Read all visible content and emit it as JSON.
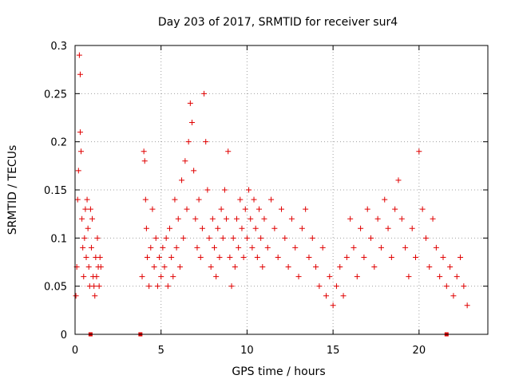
{
  "chart_data": {
    "type": "scatter",
    "title": "Day 203 of 2017, SRMTID for receiver sur4",
    "xlabel": "GPS time / hours",
    "ylabel": "SRMTID / TECUs",
    "xlim": [
      0,
      24
    ],
    "ylim": [
      0,
      0.3
    ],
    "xticks": [
      0,
      5,
      10,
      15,
      20
    ],
    "yticks": [
      0,
      0.05,
      0.1,
      0.15,
      0.2,
      0.25,
      0.3
    ],
    "xtick_labels": [
      "0",
      "5",
      "10",
      "15",
      "20"
    ],
    "ytick_labels": [
      "0",
      "0.05",
      "0.1",
      "0.15",
      "0.2",
      "0.25",
      "0.3"
    ],
    "grid": true,
    "marker": "+",
    "color": "#e00000",
    "series": [
      {
        "name": "SRMTID",
        "points": [
          [
            0.05,
            0.04
          ],
          [
            0.1,
            0.07
          ],
          [
            0.15,
            0.14
          ],
          [
            0.2,
            0.17
          ],
          [
            0.25,
            0.29
          ],
          [
            0.3,
            0.27
          ],
          [
            0.3,
            0.21
          ],
          [
            0.35,
            0.19
          ],
          [
            0.4,
            0.12
          ],
          [
            0.45,
            0.09
          ],
          [
            0.5,
            0.06
          ],
          [
            0.55,
            0.1
          ],
          [
            0.6,
            0.13
          ],
          [
            0.65,
            0.08
          ],
          [
            0.7,
            0.14
          ],
          [
            0.75,
            0.11
          ],
          [
            0.8,
            0.07
          ],
          [
            0.85,
            0.05
          ],
          [
            0.9,
            0.13
          ],
          [
            0.95,
            0.09
          ],
          [
            1.0,
            0.12
          ],
          [
            1.05,
            0.06
          ],
          [
            1.1,
            0.05
          ],
          [
            1.15,
            0.04
          ],
          [
            1.2,
            0.08
          ],
          [
            1.25,
            0.06
          ],
          [
            1.3,
            0.1
          ],
          [
            1.35,
            0.07
          ],
          [
            1.4,
            0.05
          ],
          [
            1.45,
            0.08
          ],
          [
            1.5,
            0.07
          ],
          [
            3.9,
            0.06
          ],
          [
            4.0,
            0.19
          ],
          [
            4.05,
            0.18
          ],
          [
            4.1,
            0.14
          ],
          [
            4.15,
            0.11
          ],
          [
            4.2,
            0.08
          ],
          [
            4.3,
            0.05
          ],
          [
            4.4,
            0.09
          ],
          [
            4.5,
            0.13
          ],
          [
            4.6,
            0.07
          ],
          [
            4.7,
            0.1
          ],
          [
            4.8,
            0.05
          ],
          [
            4.9,
            0.08
          ],
          [
            5.0,
            0.06
          ],
          [
            5.1,
            0.09
          ],
          [
            5.2,
            0.07
          ],
          [
            5.3,
            0.1
          ],
          [
            5.4,
            0.05
          ],
          [
            5.5,
            0.11
          ],
          [
            5.6,
            0.08
          ],
          [
            5.7,
            0.06
          ],
          [
            5.8,
            0.14
          ],
          [
            5.9,
            0.09
          ],
          [
            6.0,
            0.12
          ],
          [
            6.1,
            0.07
          ],
          [
            6.2,
            0.16
          ],
          [
            6.3,
            0.1
          ],
          [
            6.4,
            0.18
          ],
          [
            6.5,
            0.13
          ],
          [
            6.6,
            0.2
          ],
          [
            6.7,
            0.24
          ],
          [
            6.8,
            0.22
          ],
          [
            6.9,
            0.17
          ],
          [
            7.0,
            0.12
          ],
          [
            7.1,
            0.09
          ],
          [
            7.2,
            0.14
          ],
          [
            7.3,
            0.08
          ],
          [
            7.4,
            0.11
          ],
          [
            7.5,
            0.25
          ],
          [
            7.6,
            0.2
          ],
          [
            7.7,
            0.15
          ],
          [
            7.8,
            0.1
          ],
          [
            7.9,
            0.07
          ],
          [
            8.0,
            0.12
          ],
          [
            8.1,
            0.09
          ],
          [
            8.2,
            0.06
          ],
          [
            8.3,
            0.11
          ],
          [
            8.4,
            0.08
          ],
          [
            8.5,
            0.13
          ],
          [
            8.6,
            0.1
          ],
          [
            8.7,
            0.15
          ],
          [
            8.8,
            0.12
          ],
          [
            8.9,
            0.19
          ],
          [
            9.0,
            0.08
          ],
          [
            9.1,
            0.05
          ],
          [
            9.2,
            0.1
          ],
          [
            9.3,
            0.07
          ],
          [
            9.4,
            0.12
          ],
          [
            9.5,
            0.09
          ],
          [
            9.6,
            0.14
          ],
          [
            9.7,
            0.11
          ],
          [
            9.8,
            0.08
          ],
          [
            9.9,
            0.13
          ],
          [
            10.0,
            0.1
          ],
          [
            10.1,
            0.15
          ],
          [
            10.2,
            0.12
          ],
          [
            10.3,
            0.09
          ],
          [
            10.4,
            0.14
          ],
          [
            10.5,
            0.11
          ],
          [
            10.6,
            0.08
          ],
          [
            10.7,
            0.13
          ],
          [
            10.8,
            0.1
          ],
          [
            10.9,
            0.07
          ],
          [
            11.0,
            0.12
          ],
          [
            11.2,
            0.09
          ],
          [
            11.4,
            0.14
          ],
          [
            11.6,
            0.11
          ],
          [
            11.8,
            0.08
          ],
          [
            12.0,
            0.13
          ],
          [
            12.2,
            0.1
          ],
          [
            12.4,
            0.07
          ],
          [
            12.6,
            0.12
          ],
          [
            12.8,
            0.09
          ],
          [
            13.0,
            0.06
          ],
          [
            13.2,
            0.11
          ],
          [
            13.4,
            0.13
          ],
          [
            13.6,
            0.08
          ],
          [
            13.8,
            0.1
          ],
          [
            14.0,
            0.07
          ],
          [
            14.2,
            0.05
          ],
          [
            14.4,
            0.09
          ],
          [
            14.6,
            0.04
          ],
          [
            14.8,
            0.06
          ],
          [
            15.0,
            0.03
          ],
          [
            15.2,
            0.05
          ],
          [
            15.4,
            0.07
          ],
          [
            15.6,
            0.04
          ],
          [
            15.8,
            0.08
          ],
          [
            16.0,
            0.12
          ],
          [
            16.2,
            0.09
          ],
          [
            16.4,
            0.06
          ],
          [
            16.6,
            0.11
          ],
          [
            16.8,
            0.08
          ],
          [
            17.0,
            0.13
          ],
          [
            17.2,
            0.1
          ],
          [
            17.4,
            0.07
          ],
          [
            17.6,
            0.12
          ],
          [
            17.8,
            0.09
          ],
          [
            18.0,
            0.14
          ],
          [
            18.2,
            0.11
          ],
          [
            18.4,
            0.08
          ],
          [
            18.6,
            0.13
          ],
          [
            18.8,
            0.16
          ],
          [
            19.0,
            0.12
          ],
          [
            19.2,
            0.09
          ],
          [
            19.4,
            0.06
          ],
          [
            19.6,
            0.11
          ],
          [
            19.8,
            0.08
          ],
          [
            20.0,
            0.19
          ],
          [
            20.2,
            0.13
          ],
          [
            20.4,
            0.1
          ],
          [
            20.6,
            0.07
          ],
          [
            20.8,
            0.12
          ],
          [
            21.0,
            0.09
          ],
          [
            21.2,
            0.06
          ],
          [
            21.4,
            0.08
          ],
          [
            21.6,
            0.05
          ],
          [
            21.8,
            0.07
          ],
          [
            22.0,
            0.04
          ],
          [
            22.2,
            0.06
          ],
          [
            22.4,
            0.08
          ],
          [
            22.6,
            0.05
          ],
          [
            22.8,
            0.03
          ]
        ]
      }
    ],
    "gap_markers": [
      0.9,
      3.8,
      21.6
    ]
  }
}
